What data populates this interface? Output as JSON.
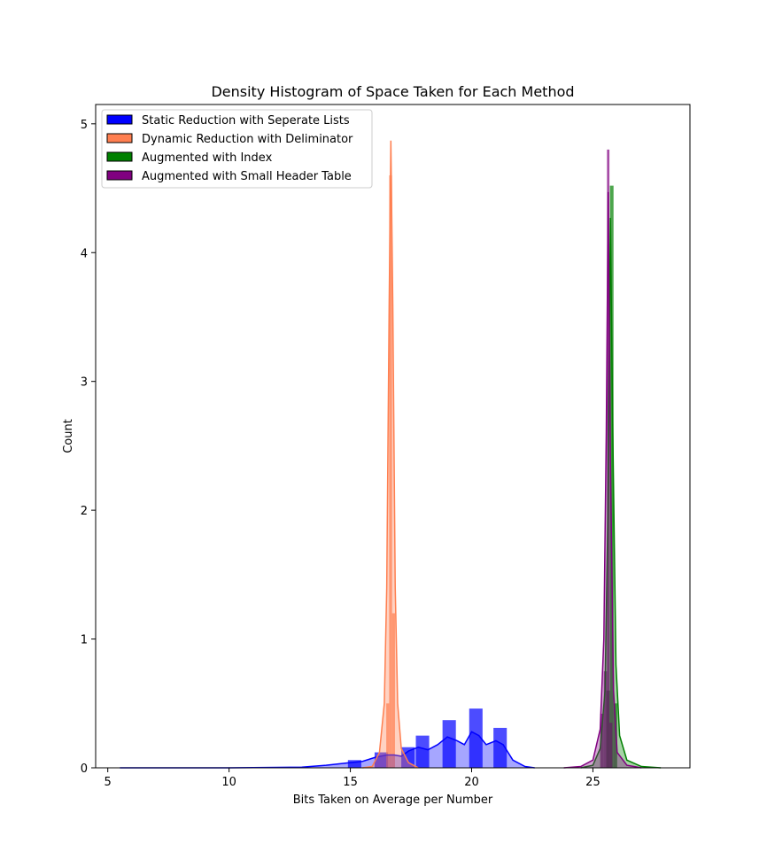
{
  "chart_data": {
    "type": "histogram",
    "title": "Density Histogram of Space Taken for Each Method",
    "xlabel": "Bits Taken on Average per Number",
    "ylabel": "Count",
    "xlim": [
      4.5,
      29
    ],
    "ylim": [
      0,
      5.15
    ],
    "xticks": [
      5,
      10,
      15,
      20,
      25
    ],
    "yticks": [
      0,
      1,
      2,
      3,
      4,
      5
    ],
    "grid": false,
    "legend_position": "top-left",
    "series": [
      {
        "name": "Static Reduction with Seperate Lists",
        "color": "#0000ff",
        "bins": [
          {
            "x0": 14.9,
            "x1": 15.45,
            "value": 0.06
          },
          {
            "x0": 16.0,
            "x1": 16.55,
            "value": 0.12
          },
          {
            "x0": 17.1,
            "x1": 17.65,
            "value": 0.16
          },
          {
            "x0": 17.7,
            "x1": 18.25,
            "value": 0.25
          },
          {
            "x0": 18.8,
            "x1": 19.35,
            "value": 0.37
          },
          {
            "x0": 19.9,
            "x1": 20.45,
            "value": 0.46
          },
          {
            "x0": 20.9,
            "x1": 21.45,
            "value": 0.31
          }
        ],
        "kde": [
          [
            5.5,
            0.0
          ],
          [
            10,
            0.0
          ],
          [
            13,
            0.005
          ],
          [
            14,
            0.02
          ],
          [
            14.5,
            0.03
          ],
          [
            15,
            0.04
          ],
          [
            15.5,
            0.05
          ],
          [
            16,
            0.08
          ],
          [
            16.5,
            0.1
          ],
          [
            16.8,
            0.1
          ],
          [
            17.1,
            0.09
          ],
          [
            17.4,
            0.13
          ],
          [
            17.8,
            0.16
          ],
          [
            18.2,
            0.14
          ],
          [
            18.6,
            0.18
          ],
          [
            19.0,
            0.24
          ],
          [
            19.4,
            0.21
          ],
          [
            19.7,
            0.18
          ],
          [
            20.0,
            0.28
          ],
          [
            20.3,
            0.25
          ],
          [
            20.6,
            0.18
          ],
          [
            21.0,
            0.21
          ],
          [
            21.3,
            0.18
          ],
          [
            21.7,
            0.06
          ],
          [
            22.2,
            0.01
          ],
          [
            22.6,
            0.0
          ]
        ]
      },
      {
        "name": "Dynamic Reduction with Deliminator",
        "color": "#ff7f50",
        "bins": [
          {
            "x0": 16.48,
            "x1": 16.6,
            "value": 0.5
          },
          {
            "x0": 16.6,
            "x1": 16.72,
            "value": 4.6
          },
          {
            "x0": 16.72,
            "x1": 16.84,
            "value": 1.2
          }
        ],
        "kde": [
          [
            15.5,
            0.0
          ],
          [
            15.9,
            0.01
          ],
          [
            16.2,
            0.12
          ],
          [
            16.4,
            0.5
          ],
          [
            16.5,
            1.4
          ],
          [
            16.6,
            3.6
          ],
          [
            16.67,
            4.87
          ],
          [
            16.75,
            3.6
          ],
          [
            16.85,
            1.4
          ],
          [
            16.95,
            0.5
          ],
          [
            17.1,
            0.15
          ],
          [
            17.4,
            0.04
          ],
          [
            17.8,
            0.0
          ]
        ]
      },
      {
        "name": "Augmented with Index",
        "color": "#008000",
        "bins": [
          {
            "x0": 25.55,
            "x1": 25.7,
            "value": 0.6
          },
          {
            "x0": 25.7,
            "x1": 25.85,
            "value": 4.52
          },
          {
            "x0": 25.85,
            "x1": 26.0,
            "value": 0.5
          }
        ],
        "kde": [
          [
            24.5,
            0.0
          ],
          [
            25.0,
            0.02
          ],
          [
            25.3,
            0.15
          ],
          [
            25.5,
            0.6
          ],
          [
            25.62,
            2.0
          ],
          [
            25.72,
            4.27
          ],
          [
            25.82,
            2.6
          ],
          [
            25.95,
            0.8
          ],
          [
            26.1,
            0.25
          ],
          [
            26.4,
            0.06
          ],
          [
            27.0,
            0.01
          ],
          [
            27.8,
            0.0
          ]
        ]
      },
      {
        "name": "Augmented with Small Header Table",
        "color": "#800080",
        "bins": [
          {
            "x0": 25.3,
            "x1": 25.45,
            "value": 0.42
          },
          {
            "x0": 25.45,
            "x1": 25.58,
            "value": 0.75
          },
          {
            "x0": 25.58,
            "x1": 25.68,
            "value": 4.8
          },
          {
            "x0": 25.68,
            "x1": 25.8,
            "value": 0.35
          }
        ],
        "kde": [
          [
            23.8,
            0.0
          ],
          [
            24.5,
            0.01
          ],
          [
            25.0,
            0.06
          ],
          [
            25.3,
            0.3
          ],
          [
            25.45,
            1.0
          ],
          [
            25.55,
            2.6
          ],
          [
            25.63,
            4.47
          ],
          [
            25.72,
            2.4
          ],
          [
            25.85,
            0.6
          ],
          [
            26.0,
            0.12
          ],
          [
            26.4,
            0.02
          ],
          [
            27.0,
            0.0
          ]
        ]
      }
    ]
  }
}
